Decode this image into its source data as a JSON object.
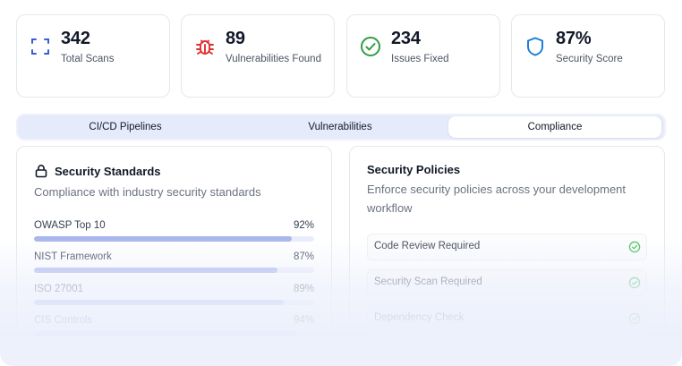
{
  "stats": [
    {
      "value": "342",
      "label": "Total Scans",
      "icon": "scan-icon",
      "color": "#3b5bdb"
    },
    {
      "value": "89",
      "label": "Vulnerabilities Found",
      "icon": "bug-icon",
      "color": "#e03131"
    },
    {
      "value": "234",
      "label": "Issues Fixed",
      "icon": "check-circle-icon",
      "color": "#2f9e44"
    },
    {
      "value": "87%",
      "label": "Security Score",
      "icon": "shield-icon",
      "color": "#1c7ed6"
    }
  ],
  "tabs": [
    {
      "label": "CI/CD Pipelines",
      "active": false
    },
    {
      "label": "Vulnerabilities",
      "active": false
    },
    {
      "label": "Compliance",
      "active": true
    }
  ],
  "standards": {
    "title": "Security Standards",
    "subtitle": "Compliance with industry security standards",
    "items": [
      {
        "name": "OWASP Top 10",
        "percent": "92%",
        "value": 92
      },
      {
        "name": "NIST Framework",
        "percent": "87%",
        "value": 87
      },
      {
        "name": "ISO 27001",
        "percent": "89%",
        "value": 89
      },
      {
        "name": "CIS Controls",
        "percent": "94%",
        "value": 94
      }
    ]
  },
  "policies": {
    "title": "Security Policies",
    "subtitle": "Enforce security policies across your development workflow",
    "items": [
      {
        "name": "Code Review Required"
      },
      {
        "name": "Security Scan Required"
      },
      {
        "name": "Dependency Check"
      }
    ]
  },
  "colors": {
    "accent": "#a8b6ee",
    "check": "#40c057"
  }
}
